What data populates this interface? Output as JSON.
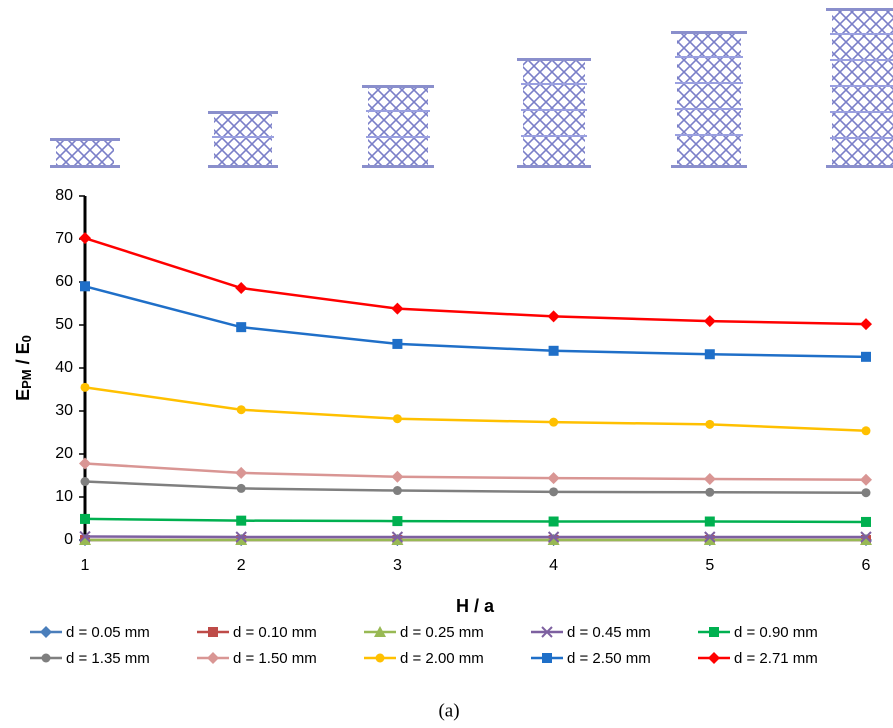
{
  "chart_data": {
    "type": "line",
    "xlabel": "H / a",
    "ylabel": [
      "E",
      "PM",
      " / E",
      "0"
    ],
    "caption": "(a)",
    "x": [
      1,
      2,
      3,
      4,
      5,
      6
    ],
    "xlim": [
      1,
      6
    ],
    "xticks": [
      1,
      2,
      3,
      4,
      5,
      6
    ],
    "ylim": [
      0,
      80
    ],
    "yticks": [
      0,
      10,
      20,
      30,
      40,
      50,
      60,
      70,
      80
    ],
    "series": [
      {
        "name": "d = 0.05 mm",
        "color": "#4a7ebb",
        "marker": "diamond",
        "values": [
          0,
          0,
          0,
          0,
          0,
          0
        ]
      },
      {
        "name": "d = 0.10 mm",
        "color": "#be4b48",
        "marker": "square",
        "values": [
          0,
          0,
          0,
          0,
          0,
          0
        ]
      },
      {
        "name": "d = 0.25 mm",
        "color": "#98b954",
        "marker": "triangle",
        "values": [
          0,
          0,
          0,
          0,
          0,
          0
        ]
      },
      {
        "name": "d = 0.45 mm",
        "color": "#7d60a0",
        "marker": "x",
        "values": [
          0.8,
          0.7,
          0.7,
          0.7,
          0.7,
          0.7
        ]
      },
      {
        "name": "d = 0.90 mm",
        "color": "#00b050",
        "marker": "square",
        "values": [
          4.9,
          4.5,
          4.4,
          4.3,
          4.3,
          4.2
        ]
      },
      {
        "name": "d = 1.35 mm",
        "color": "#7f7f7f",
        "marker": "circle",
        "values": [
          13.6,
          12,
          11.5,
          11.2,
          11.1,
          11
        ]
      },
      {
        "name": "d = 1.50 mm",
        "color": "#d99694",
        "marker": "diamond",
        "values": [
          17.8,
          15.6,
          14.7,
          14.4,
          14.2,
          14
        ]
      },
      {
        "name": "d = 2.00 mm",
        "color": "#ffc000",
        "marker": "circle",
        "values": [
          35.5,
          30.3,
          28.2,
          27.4,
          26.9,
          25.4
        ]
      },
      {
        "name": "d = 2.50 mm",
        "color": "#1f6fc8",
        "marker": "square",
        "values": [
          59,
          49.5,
          45.6,
          44,
          43.2,
          42.6
        ]
      },
      {
        "name": "d = 2.71 mm",
        "color": "#ff0000",
        "marker": "diamond",
        "values": [
          70.2,
          58.6,
          53.8,
          52,
          50.9,
          50.2
        ]
      }
    ]
  }
}
